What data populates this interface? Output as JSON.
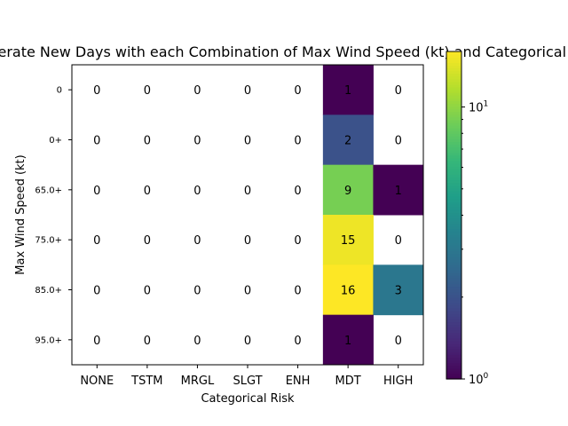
{
  "chart_data": {
    "type": "heatmap",
    "title": "Moderate New Days with each Combination of Max Wind Speed (kt) and Categorical Risk",
    "xlabel": "Categorical Risk",
    "ylabel": "Max Wind Speed (kt)",
    "x_categories": [
      "NONE",
      "TSTM",
      "MRGL",
      "SLGT",
      "ENH",
      "MDT",
      "HIGH"
    ],
    "y_categories": [
      "0",
      "0+",
      "65.0+",
      "75.0+",
      "85.0+",
      "95.0+"
    ],
    "values": [
      [
        0,
        0,
        0,
        0,
        0,
        1,
        0
      ],
      [
        0,
        0,
        0,
        0,
        0,
        2,
        0
      ],
      [
        0,
        0,
        0,
        0,
        0,
        9,
        1
      ],
      [
        0,
        0,
        0,
        0,
        0,
        15,
        0
      ],
      [
        0,
        0,
        0,
        0,
        0,
        16,
        3
      ],
      [
        0,
        0,
        0,
        0,
        0,
        1,
        0
      ]
    ],
    "colorbar": {
      "scale": "log",
      "colormap": "viridis",
      "vmin": 1,
      "vmax": 16,
      "tick_labels": [
        {
          "value": 1,
          "base": "10",
          "exp": "0"
        },
        {
          "value": 10,
          "base": "10",
          "exp": "1"
        }
      ]
    },
    "zero_cells": "blank"
  }
}
